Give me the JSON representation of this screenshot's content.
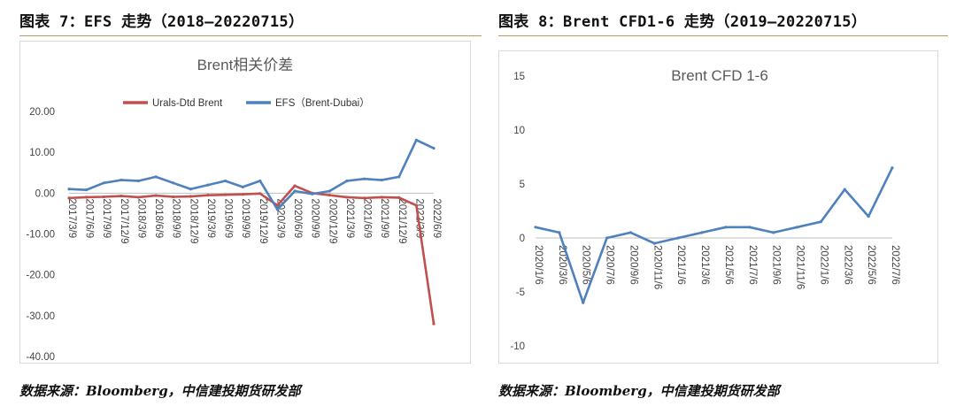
{
  "figure_left": {
    "title": "图表 7：EFS 走势（2018—20220715）",
    "source": "数据来源：Bloomberg，中信建投期货研发部"
  },
  "figure_right": {
    "title": "图表 8：Brent CFD1-6 走势（2019—20220715）",
    "source": "数据来源：Bloomberg，中信建投期货研发部"
  },
  "colors": {
    "red_series": "#c0504d",
    "blue_series": "#4f81bd",
    "rule": "#b89a62"
  },
  "chart_data": [
    {
      "type": "line",
      "title": "Brent相关价差",
      "ylim": [
        -40,
        20
      ],
      "y_ticks": [
        "20.00",
        "10.00",
        "0.00",
        "-10.00",
        "-20.00",
        "-30.00",
        "-40.00"
      ],
      "categories": [
        "2017/3/9",
        "2017/6/9",
        "2017/9/9",
        "2017/12/9",
        "2018/3/9",
        "2018/6/9",
        "2018/9/9",
        "2018/12/9",
        "2019/3/9",
        "2019/6/9",
        "2019/9/9",
        "2019/12/9",
        "2020/3/9",
        "2020/6/9",
        "2020/9/9",
        "2020/12/9",
        "2021/3/9",
        "2021/6/9",
        "2021/9/9",
        "2021/12/9",
        "2022/3/9",
        "2022/6/9"
      ],
      "legend": "top",
      "series": [
        {
          "name": "Urals-Dtd Brent",
          "values": [
            -1.2,
            -1.0,
            -0.9,
            -0.7,
            -1.0,
            -0.6,
            -0.9,
            -0.8,
            -0.5,
            -0.4,
            -0.3,
            -0.1,
            -3.0,
            1.8,
            0.0,
            -0.5,
            -1.0,
            -1.2,
            -1.0,
            -1.1,
            -3.0,
            -32.0
          ]
        },
        {
          "name": "EFS（Brent-Dubai）",
          "values": [
            1.0,
            0.8,
            2.5,
            3.2,
            3.0,
            4.0,
            2.5,
            1.0,
            2.0,
            3.0,
            1.5,
            3.0,
            -4.0,
            0.5,
            -0.2,
            0.5,
            3.0,
            3.5,
            3.2,
            4.0,
            13.0,
            11.0
          ]
        }
      ]
    },
    {
      "type": "line",
      "title": "Brent CFD 1-6",
      "ylim": [
        -10,
        15
      ],
      "y_ticks": [
        "15",
        "10",
        "5",
        "0",
        "-5",
        "-10"
      ],
      "categories": [
        "2020/1/6",
        "2020/3/6",
        "2020/5/6",
        "2020/7/6",
        "2020/9/6",
        "2020/11/6",
        "2021/1/6",
        "2021/3/6",
        "2021/5/6",
        "2021/7/6",
        "2021/9/6",
        "2021/11/6",
        "2022/1/6",
        "2022/3/6",
        "2022/5/6",
        "2022/7/6"
      ],
      "series": [
        {
          "name": "",
          "values": [
            1.0,
            0.5,
            -6.0,
            0.0,
            0.5,
            -0.5,
            0.0,
            0.5,
            1.0,
            1.0,
            0.5,
            1.0,
            1.5,
            4.5,
            2.0,
            6.5
          ]
        }
      ]
    }
  ]
}
